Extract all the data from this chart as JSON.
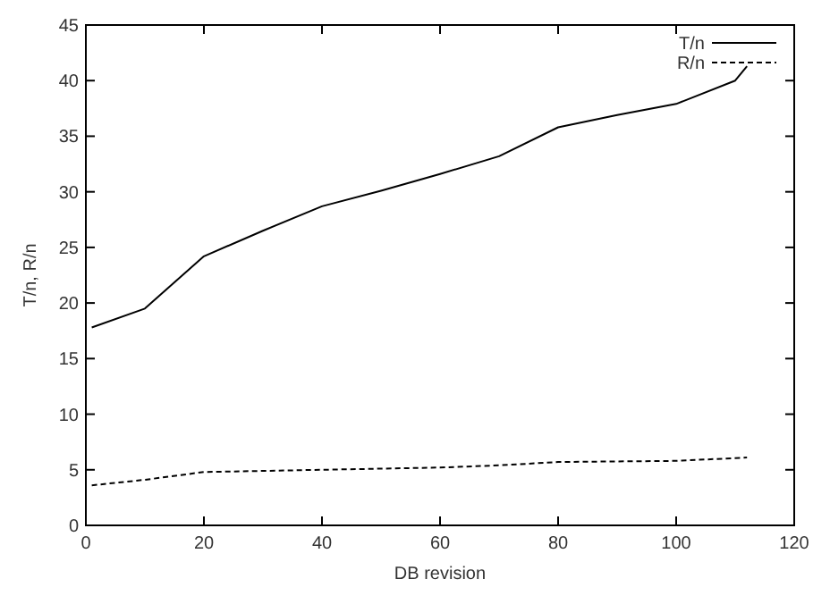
{
  "chart_data": {
    "type": "line",
    "xlabel": "DB revision",
    "ylabel": "T/n, R/n",
    "xlim": [
      0,
      120
    ],
    "xticks": [
      0,
      20,
      40,
      60,
      80,
      100,
      120
    ],
    "ylim": [
      0,
      45
    ],
    "yticks": [
      0,
      5,
      10,
      15,
      20,
      25,
      30,
      35,
      40,
      45
    ],
    "legend": "top right",
    "grid": false,
    "marker": "none",
    "series": [
      {
        "name": "T/n",
        "color": "#000000",
        "line_style": "solid",
        "x": [
          1,
          10,
          20,
          30,
          40,
          50,
          60,
          70,
          80,
          90,
          100,
          110,
          112
        ],
        "values": [
          17.8,
          19.5,
          24.2,
          26.5,
          28.7,
          30.1,
          31.6,
          33.2,
          35.8,
          36.9,
          37.9,
          40.0,
          41.3
        ]
      },
      {
        "name": "R/n",
        "color": "#000000",
        "line_style": "dashed",
        "x": [
          1,
          10,
          20,
          40,
          60,
          70,
          80,
          100,
          112
        ],
        "values": [
          3.6,
          4.1,
          4.8,
          5.0,
          5.2,
          5.4,
          5.7,
          5.8,
          6.1
        ]
      }
    ]
  }
}
